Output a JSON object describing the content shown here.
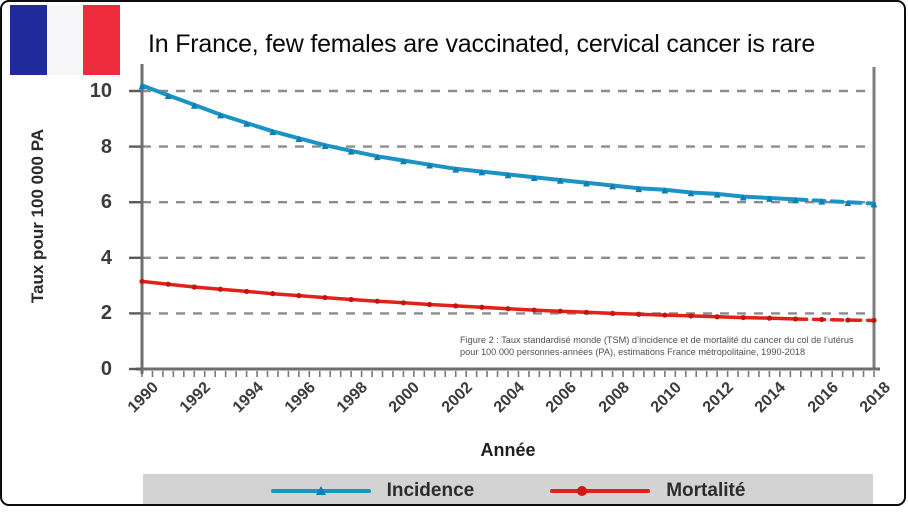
{
  "slide": {
    "title": "In France, few females are vaccinated, cervical cancer is rare"
  },
  "flag": {
    "name": "flag-of-france",
    "colors": {
      "blue": "#212a9b",
      "white": "#f6f6f8",
      "red": "#ee2b3c"
    }
  },
  "chart": {
    "y_axis_label": "Taux pour 100 000 PA",
    "x_axis_label": "Année",
    "caption_line1": "Figure 2 : Taux standardisé monde (TSM) d’incidence et de mortalité du cancer du col de l’utérus",
    "caption_line2": "pour 100 000 personnes-années (PA), estimations France métropolitaine, 1990-2018"
  },
  "legend": {
    "position": "bottom",
    "band_color": "#d3d3d3",
    "items": [
      {
        "label": "Incidence",
        "color": "#1b93c4",
        "marker": "triangle"
      },
      {
        "label": "Mortalité",
        "color": "#e32119",
        "marker": "circle"
      }
    ]
  },
  "chart_data": {
    "type": "line",
    "title": "",
    "xlabel": "Année",
    "ylabel": "Taux pour 100 000 PA",
    "x": [
      1990,
      1991,
      1992,
      1993,
      1994,
      1995,
      1996,
      1997,
      1998,
      1999,
      2000,
      2001,
      2002,
      2003,
      2004,
      2005,
      2006,
      2007,
      2008,
      2009,
      2010,
      2011,
      2012,
      2013,
      2014,
      2015,
      2016,
      2017,
      2018
    ],
    "x_tick_labels": [
      "1990",
      "1992",
      "1994",
      "1996",
      "1998",
      "2000",
      "2002",
      "2004",
      "2006",
      "2008",
      "2010",
      "2012",
      "2014",
      "2016",
      "2018"
    ],
    "y_ticks": [
      0,
      2,
      4,
      6,
      8,
      10
    ],
    "ylim": [
      0,
      10.9
    ],
    "grid": "horizontal-dashed",
    "dashed_from_year": 2015,
    "series": [
      {
        "name": "Incidence",
        "color": "#1b93c4",
        "marker": "triangle",
        "marker_color": "#0e7fae",
        "values": [
          10.2,
          9.85,
          9.5,
          9.15,
          8.85,
          8.55,
          8.3,
          8.05,
          7.85,
          7.65,
          7.5,
          7.35,
          7.2,
          7.1,
          7.0,
          6.9,
          6.8,
          6.7,
          6.6,
          6.5,
          6.45,
          6.35,
          6.3,
          6.2,
          6.15,
          6.1,
          6.05,
          6.0,
          5.95
        ]
      },
      {
        "name": "Mortalité",
        "color": "#e32119",
        "marker": "circle",
        "marker_color": "#c01810",
        "values": [
          3.15,
          3.05,
          2.95,
          2.87,
          2.79,
          2.71,
          2.64,
          2.57,
          2.5,
          2.44,
          2.38,
          2.32,
          2.27,
          2.22,
          2.17,
          2.12,
          2.08,
          2.04,
          2.0,
          1.97,
          1.94,
          1.91,
          1.88,
          1.85,
          1.83,
          1.8,
          1.78,
          1.76,
          1.75
        ]
      }
    ]
  }
}
